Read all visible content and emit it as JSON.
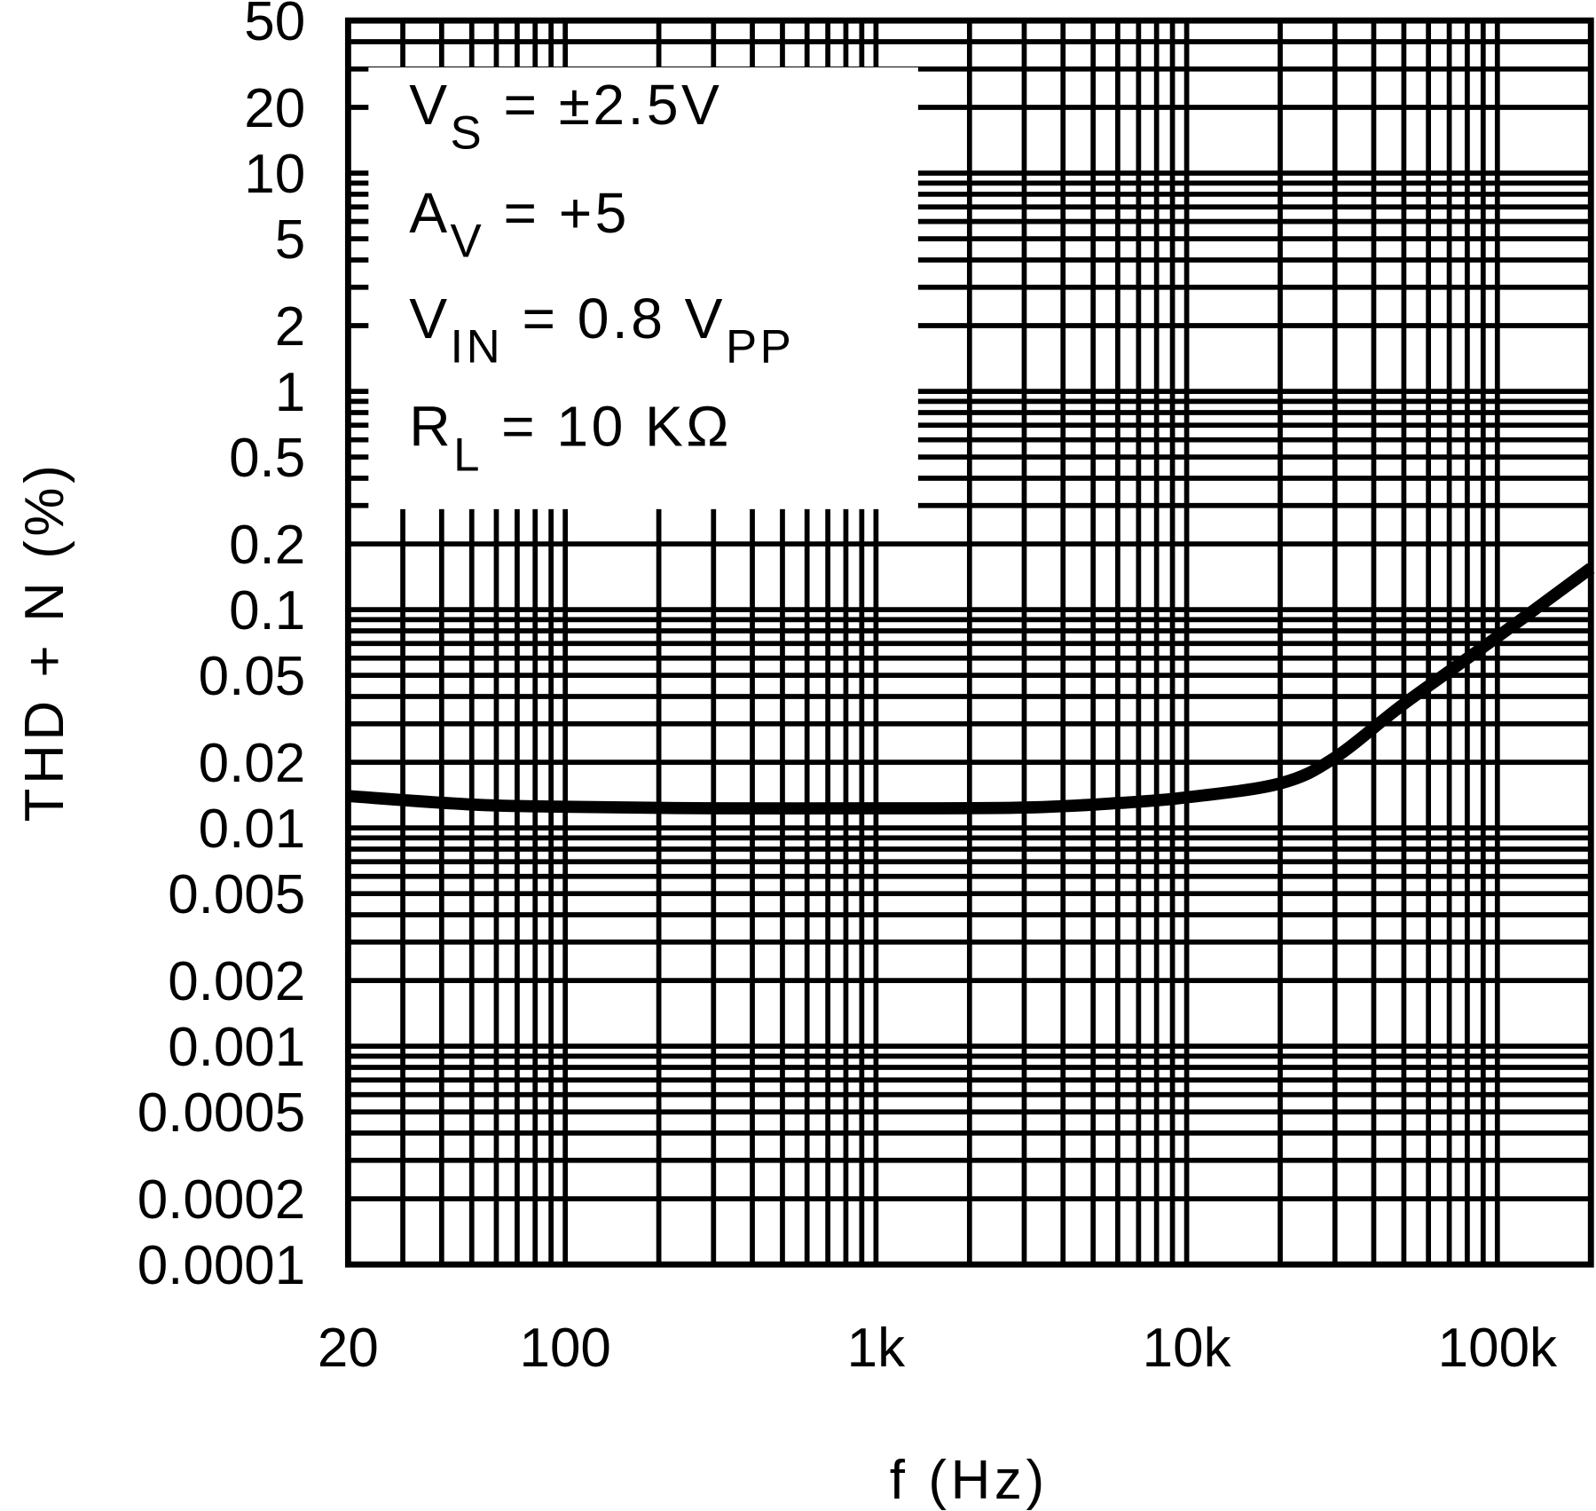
{
  "chart_data": {
    "type": "line",
    "title": "",
    "xlabel": "f (Hz)",
    "ylabel": "THD + N (%)",
    "x_scale": "log",
    "y_scale": "log",
    "xlim": [
      20,
      200000
    ],
    "ylim": [
      0.0001,
      50
    ],
    "grid": true,
    "x_ticks": [
      {
        "value": 20,
        "label": "20"
      },
      {
        "value": 100,
        "label": "100"
      },
      {
        "value": 1000,
        "label": "1k"
      },
      {
        "value": 10000,
        "label": "10k"
      },
      {
        "value": 100000,
        "label": "100k"
      }
    ],
    "y_ticks": [
      {
        "value": 50,
        "label": "50"
      },
      {
        "value": 20,
        "label": "20"
      },
      {
        "value": 10,
        "label": "10"
      },
      {
        "value": 5,
        "label": "5"
      },
      {
        "value": 2,
        "label": "2"
      },
      {
        "value": 1,
        "label": "1"
      },
      {
        "value": 0.5,
        "label": "0.5"
      },
      {
        "value": 0.2,
        "label": "0.2"
      },
      {
        "value": 0.1,
        "label": "0.1"
      },
      {
        "value": 0.05,
        "label": "0.05"
      },
      {
        "value": 0.02,
        "label": "0.02"
      },
      {
        "value": 0.01,
        "label": "0.01"
      },
      {
        "value": 0.005,
        "label": "0.005"
      },
      {
        "value": 0.002,
        "label": "0.002"
      },
      {
        "value": 0.001,
        "label": "0.001"
      },
      {
        "value": 0.0005,
        "label": "0.0005"
      },
      {
        "value": 0.0002,
        "label": "0.0002"
      },
      {
        "value": 0.0001,
        "label": "0.0001"
      }
    ],
    "series": [
      {
        "x": [
          20,
          50,
          100,
          300,
          1000,
          3000,
          6000,
          10000,
          20000,
          30000,
          50000,
          100000,
          200000
        ],
        "y": [
          0.014,
          0.0128,
          0.0125,
          0.0123,
          0.0123,
          0.0124,
          0.013,
          0.0138,
          0.016,
          0.021,
          0.037,
          0.075,
          0.155
        ]
      }
    ],
    "annotation": [
      {
        "main": "V",
        "sub": "S",
        "rest": " =  ±2.5V"
      },
      {
        "main": "A",
        "sub": "V",
        "rest": " =  +5"
      },
      {
        "main": "V",
        "sub": "IN",
        "rest": "  =  0.8 V",
        "sub2": "PP"
      },
      {
        "main": "R",
        "sub": "L",
        "rest": "  =  10 KΩ"
      }
    ]
  }
}
